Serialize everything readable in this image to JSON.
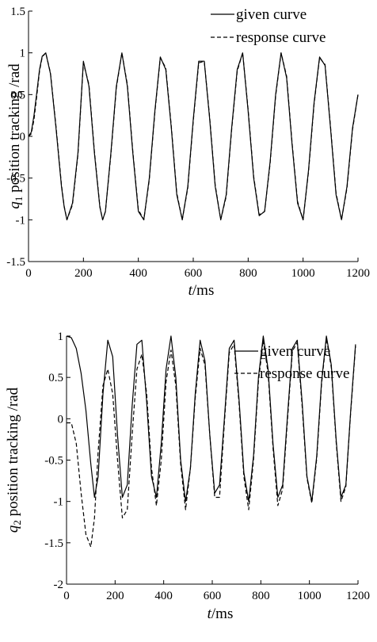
{
  "chart_data": [
    {
      "type": "line",
      "title": "",
      "xlabel_var": "t",
      "xlabel_unit": "/ms",
      "ylabel_var": "q",
      "ylabel_sub": "1",
      "ylabel_text": " position tracking /rad",
      "xlim": [
        0,
        1200
      ],
      "ylim": [
        -1.5,
        1.5
      ],
      "xticks": [
        0,
        200,
        400,
        600,
        800,
        1000,
        1200
      ],
      "xtick_labels": [
        "0",
        "200",
        "400",
        "600",
        "800",
        "1000",
        "1200"
      ],
      "yticks": [
        1.5,
        1,
        0.5,
        0,
        -0.5,
        -1,
        -1.5
      ],
      "ytick_labels": [
        "1.5",
        "1",
        "0.5",
        "0",
        "-0.5",
        "-1",
        "-1.5"
      ],
      "grid": false,
      "legend_position": "top-right",
      "series": [
        {
          "name": "given curve",
          "style": "solid",
          "x": [
            0,
            10,
            20,
            30,
            40,
            50,
            63,
            80,
            100,
            120,
            130,
            140,
            160,
            180,
            200,
            220,
            240,
            260,
            270,
            280,
            300,
            320,
            340,
            360,
            380,
            400,
            420,
            440,
            460,
            480,
            500,
            520,
            540,
            560,
            580,
            600,
            620,
            640,
            660,
            680,
            700,
            720,
            740,
            760,
            780,
            800,
            820,
            840,
            860,
            880,
            900,
            920,
            940,
            960,
            980,
            1000,
            1020,
            1040,
            1060,
            1080,
            1100,
            1120,
            1140,
            1160,
            1180,
            1200
          ],
          "y": [
            0,
            0.05,
            0.25,
            0.52,
            0.8,
            0.96,
            1.0,
            0.75,
            0.1,
            -0.6,
            -0.85,
            -1.0,
            -0.8,
            -0.2,
            0.9,
            0.6,
            -0.2,
            -0.85,
            -1.0,
            -0.9,
            -0.2,
            0.6,
            1.0,
            0.6,
            -0.2,
            -0.9,
            -1.0,
            -0.5,
            0.3,
            0.95,
            0.8,
            0.1,
            -0.7,
            -1.0,
            -0.6,
            0.2,
            0.9,
            0.9,
            0.2,
            -0.6,
            -1.0,
            -0.7,
            0.1,
            0.8,
            1.0,
            0.3,
            -0.5,
            -0.95,
            -0.9,
            -0.3,
            0.5,
            1.0,
            0.7,
            -0.1,
            -0.8,
            -1.0,
            -0.4,
            0.4,
            0.95,
            0.85,
            0.1,
            -0.7,
            -1.0,
            -0.6,
            0.1,
            0.5
          ]
        },
        {
          "name": "response curve",
          "style": "dashed",
          "x": [
            0,
            10,
            20,
            30,
            40,
            50,
            63,
            80,
            100,
            120,
            130,
            140,
            160,
            180,
            200,
            220,
            240,
            260,
            270,
            280,
            300,
            320,
            340,
            360,
            380,
            400,
            420,
            440,
            460,
            480,
            500,
            520,
            540,
            560,
            580,
            600,
            620,
            640,
            660,
            680,
            700,
            720,
            740,
            760,
            780,
            800,
            820,
            840,
            860,
            880,
            900,
            920,
            940,
            960,
            980,
            1000,
            1020,
            1040,
            1060,
            1080,
            1100,
            1120,
            1140,
            1160,
            1180,
            1200
          ],
          "y": [
            0,
            0.03,
            0.2,
            0.48,
            0.78,
            0.95,
            1.0,
            0.76,
            0.12,
            -0.58,
            -0.84,
            -1.0,
            -0.82,
            -0.22,
            0.88,
            0.62,
            -0.18,
            -0.84,
            -1.0,
            -0.9,
            -0.22,
            0.58,
            1.0,
            0.62,
            -0.18,
            -0.88,
            -1.0,
            -0.52,
            0.28,
            0.94,
            0.82,
            0.12,
            -0.68,
            -1.0,
            -0.62,
            0.18,
            0.88,
            0.9,
            0.22,
            -0.58,
            -1.0,
            -0.72,
            0.08,
            0.78,
            1.0,
            0.32,
            -0.48,
            -0.94,
            -0.9,
            -0.32,
            0.48,
            1.0,
            0.72,
            -0.08,
            -0.78,
            -1.0,
            -0.42,
            0.38,
            0.94,
            0.86,
            0.12,
            -0.68,
            -1.0,
            -0.62,
            0.08,
            0.5
          ]
        }
      ]
    },
    {
      "type": "line",
      "title": "",
      "xlabel_var": "t",
      "xlabel_unit": "/ms",
      "ylabel_var": "q",
      "ylabel_sub": "2",
      "ylabel_text": " position tracking /rad",
      "xlim": [
        0,
        1200
      ],
      "ylim": [
        -2,
        1
      ],
      "xticks": [
        0,
        200,
        400,
        600,
        800,
        1000,
        1200
      ],
      "xtick_labels": [
        "0",
        "200",
        "400",
        "600",
        "800",
        "1000",
        "1200"
      ],
      "yticks": [
        1,
        0.5,
        0,
        -0.5,
        -1,
        -1.5,
        -2
      ],
      "ytick_labels": [
        "1",
        "0.5",
        "0",
        "-0.5",
        "-1",
        "-1.5",
        "-2"
      ],
      "grid": false,
      "legend_position": "top-right",
      "series": [
        {
          "name": "given curve",
          "style": "solid",
          "x": [
            0,
            20,
            40,
            60,
            80,
            100,
            115,
            130,
            150,
            170,
            190,
            210,
            230,
            250,
            270,
            290,
            310,
            330,
            350,
            370,
            390,
            410,
            430,
            450,
            470,
            490,
            510,
            530,
            550,
            570,
            590,
            610,
            630,
            650,
            670,
            690,
            710,
            730,
            750,
            770,
            790,
            810,
            830,
            850,
            870,
            890,
            910,
            930,
            950,
            970,
            990,
            1010,
            1030,
            1050,
            1070,
            1090,
            1110,
            1130,
            1150,
            1170,
            1190
          ],
          "y": [
            1.0,
            0.98,
            0.85,
            0.55,
            0.1,
            -0.55,
            -0.95,
            -0.7,
            0.3,
            0.95,
            0.75,
            -0.2,
            -0.95,
            -0.8,
            0.15,
            0.9,
            0.95,
            0.2,
            -0.7,
            -0.95,
            -0.3,
            0.6,
            1.0,
            0.5,
            -0.5,
            -1.0,
            -0.6,
            0.3,
            0.95,
            0.7,
            -0.2,
            -0.9,
            -0.8,
            0.0,
            0.85,
            0.95,
            0.25,
            -0.65,
            -1.0,
            -0.45,
            0.5,
            1.0,
            0.6,
            -0.3,
            -0.95,
            -0.8,
            0.05,
            0.85,
            0.95,
            0.2,
            -0.7,
            -1.0,
            -0.45,
            0.45,
            1.0,
            0.65,
            -0.25,
            -0.95,
            -0.8,
            0.1,
            0.9
          ]
        },
        {
          "name": "response curve",
          "style": "dashed",
          "x": [
            0,
            20,
            40,
            60,
            80,
            100,
            115,
            130,
            150,
            170,
            190,
            210,
            230,
            250,
            270,
            290,
            310,
            330,
            350,
            370,
            390,
            410,
            430,
            450,
            470,
            490,
            510,
            530,
            550,
            570,
            590,
            610,
            630,
            650,
            670,
            690,
            710,
            730,
            750,
            770,
            790,
            810,
            830,
            850,
            870,
            890,
            910,
            930,
            950,
            970,
            990,
            1010,
            1030,
            1050,
            1070,
            1090,
            1110,
            1130,
            1150,
            1170,
            1190
          ],
          "y": [
            -0.05,
            -0.05,
            -0.3,
            -0.9,
            -1.4,
            -1.55,
            -1.2,
            -0.4,
            0.4,
            0.6,
            0.3,
            -0.5,
            -1.2,
            -1.1,
            -0.2,
            0.6,
            0.78,
            0.3,
            -0.6,
            -1.05,
            -0.5,
            0.45,
            0.83,
            0.4,
            -0.55,
            -1.1,
            -0.6,
            0.25,
            0.85,
            0.65,
            -0.2,
            -0.95,
            -0.95,
            -0.05,
            0.8,
            0.9,
            0.2,
            -0.7,
            -1.1,
            -0.5,
            0.45,
            0.95,
            0.55,
            -0.35,
            -1.05,
            -0.85,
            0.0,
            0.82,
            0.92,
            0.15,
            -0.72,
            -1.02,
            -0.48,
            0.42,
            0.97,
            0.62,
            -0.28,
            -1.0,
            -0.82,
            0.08,
            0.88
          ]
        }
      ]
    }
  ]
}
